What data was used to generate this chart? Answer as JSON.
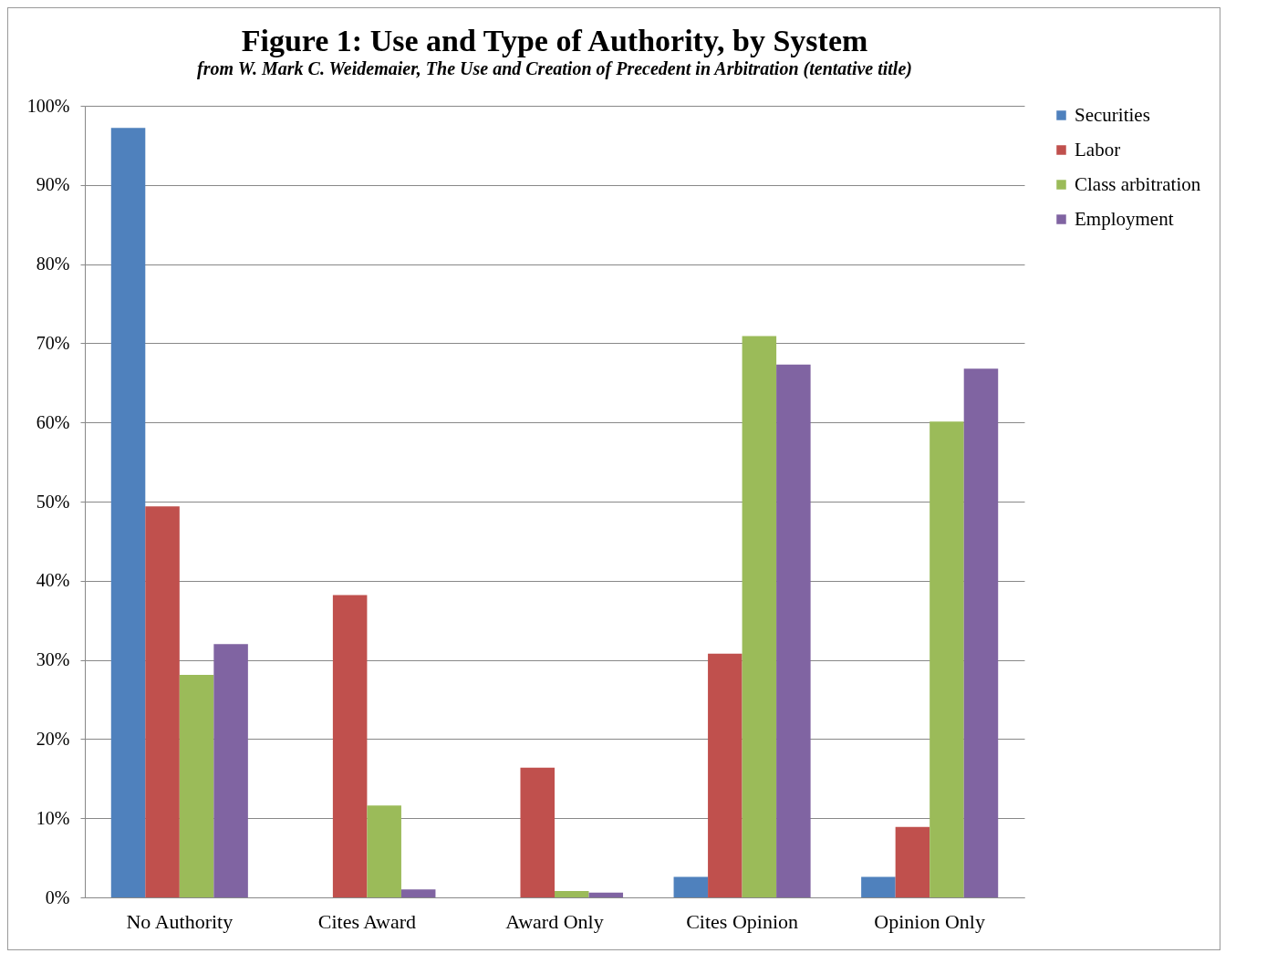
{
  "chart_data": {
    "type": "bar",
    "title": "Figure 1: Use and Type of Authority, by System",
    "subtitle": "from W. Mark C. Weidemaier, The Use and Creation of Precedent in Arbitration (tentative title)",
    "categories": [
      "No Authority",
      "Cites Award",
      "Award Only",
      "Cites Opinion",
      "Opinion Only"
    ],
    "series": [
      {
        "name": "Securities",
        "color": "#4f81bd",
        "values": [
          97.2,
          0,
          0,
          2.6,
          2.6
        ]
      },
      {
        "name": "Labor",
        "color": "#c0504d",
        "values": [
          49.4,
          38.2,
          16.4,
          30.8,
          8.9
        ]
      },
      {
        "name": "Class arbitration",
        "color": "#9bbb59",
        "values": [
          28.1,
          11.6,
          0.8,
          70.9,
          60.1
        ]
      },
      {
        "name": "Employment",
        "color": "#8064a2",
        "values": [
          32.0,
          1.0,
          0.6,
          67.3,
          66.8
        ]
      }
    ],
    "ylim": [
      0,
      100
    ],
    "yticks": [
      {
        "value": 0,
        "label": "0%"
      },
      {
        "value": 10,
        "label": "10%"
      },
      {
        "value": 20,
        "label": "20%"
      },
      {
        "value": 30,
        "label": "30%"
      },
      {
        "value": 40,
        "label": "40%"
      },
      {
        "value": 50,
        "label": "50%"
      },
      {
        "value": 60,
        "label": "60%"
      },
      {
        "value": 70,
        "label": "70%"
      },
      {
        "value": 80,
        "label": "80%"
      },
      {
        "value": 90,
        "label": "90%"
      },
      {
        "value": 100,
        "label": "100%"
      }
    ],
    "grid": "y",
    "legend": "right"
  }
}
